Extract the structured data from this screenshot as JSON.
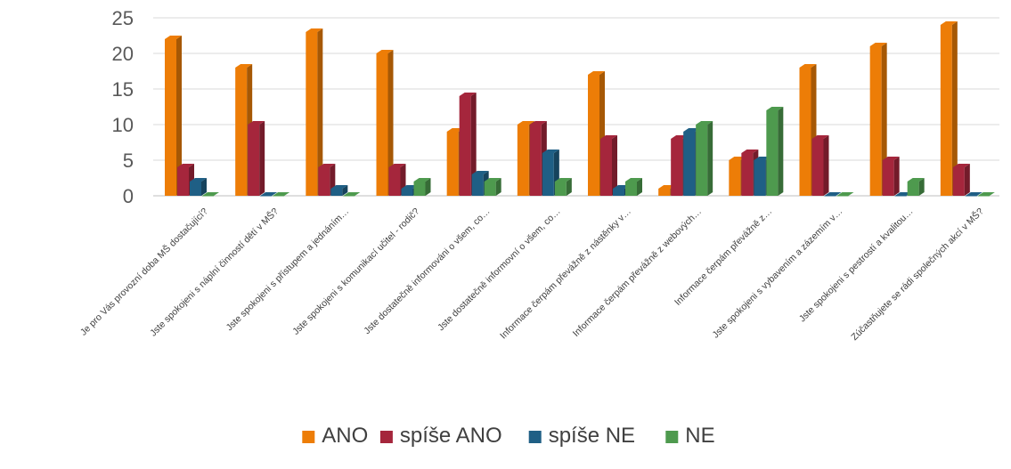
{
  "chart_data": {
    "type": "bar",
    "title": "",
    "xlabel": "",
    "ylabel": "",
    "ylim": [
      0,
      25
    ],
    "yticks": [
      0,
      5,
      10,
      15,
      20,
      25
    ],
    "grid": true,
    "legend_position": "bottom",
    "categories": [
      "Je pro Vás provozní doba MŠ dostačující?",
      "Jste spokojeni s náplní činností dětí v MŠ?",
      "Jste spokojeni s přístupem a jednáním…",
      "Jste spokojeni s komunikací učitel - rodič?",
      "Jste dostatečně informováni o všem, co…",
      "Jste dostatečně informovní o všem, co…",
      "Informace čerpám převážně z nástěnky v…",
      "Informace čerpám převážně z webových…",
      "Informace čerpám převážně z…",
      "Jste spokojeni s vybavením a zázemím v…",
      "Jste spokojeni s pestrostí a kvalitou…",
      "Zúčastňujete se rádi společných akcí v MŠ?"
    ],
    "series": [
      {
        "name": "ANO",
        "color": "#ED7D07",
        "values": [
          22,
          18,
          23,
          20,
          9,
          10,
          17,
          1,
          5,
          18,
          21,
          24
        ]
      },
      {
        "name": "spíše ANO",
        "color": "#A5263C",
        "values": [
          4,
          10,
          4,
          4,
          14,
          10,
          8,
          8,
          6,
          8,
          5,
          4
        ]
      },
      {
        "name": "spíše NE",
        "color": "#1F5F85",
        "values": [
          2,
          0,
          1,
          1,
          3,
          6,
          1,
          9,
          5,
          0,
          0,
          0
        ]
      },
      {
        "name": "NE",
        "color": "#4E9A4E",
        "values": [
          0,
          0,
          0,
          2,
          2,
          2,
          2,
          10,
          12,
          0,
          2,
          0
        ]
      }
    ]
  }
}
